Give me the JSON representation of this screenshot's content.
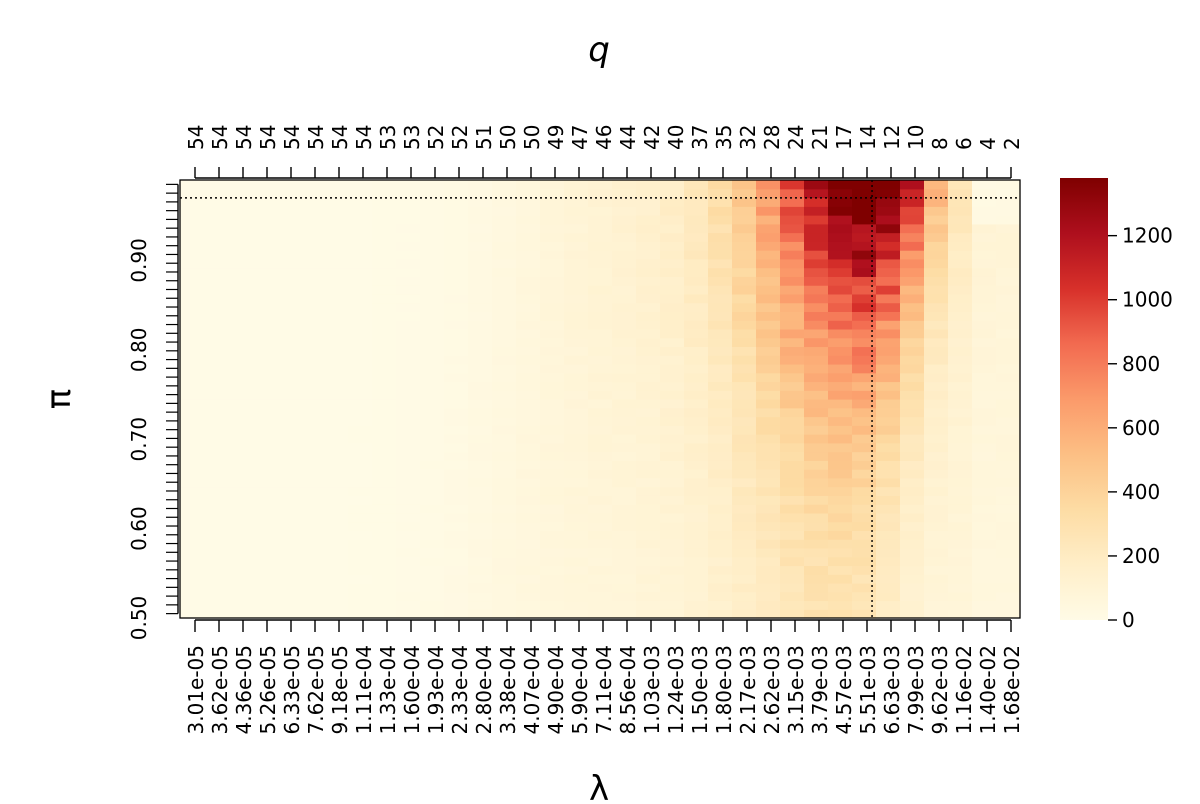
{
  "chart_data": {
    "type": "heatmap",
    "title": "",
    "xlabel": "λ",
    "ylabel": "π",
    "x2label": "q",
    "x_scale": "log",
    "xlim": [
      3.01e-05,
      0.0185
    ],
    "ylim": [
      0.5,
      0.99
    ],
    "x_tick_labels": [
      "3.01e-05",
      "3.62e-05",
      "4.36e-05",
      "5.26e-05",
      "6.33e-05",
      "7.62e-05",
      "9.18e-05",
      "1.11e-04",
      "1.33e-04",
      "1.60e-04",
      "1.93e-04",
      "2.33e-04",
      "2.80e-04",
      "3.38e-04",
      "4.07e-04",
      "4.90e-04",
      "5.90e-04",
      "7.11e-04",
      "8.56e-04",
      "1.03e-03",
      "1.24e-03",
      "1.50e-03",
      "1.80e-03",
      "2.17e-03",
      "2.62e-03",
      "3.15e-03",
      "3.79e-03",
      "4.57e-03",
      "5.51e-03",
      "6.63e-03",
      "7.99e-03",
      "9.62e-03",
      "1.16e-02",
      "1.40e-02",
      "1.68e-02"
    ],
    "q_tick_labels": [
      "54",
      "54",
      "54",
      "54",
      "54",
      "54",
      "54",
      "54",
      "53",
      "53",
      "52",
      "52",
      "51",
      "50",
      "50",
      "49",
      "47",
      "46",
      "44",
      "42",
      "40",
      "37",
      "35",
      "32",
      "28",
      "24",
      "21",
      "17",
      "14",
      "12",
      "10",
      "8",
      "6",
      "4",
      "2"
    ],
    "y_tick_labels": [
      "0.50",
      "0.60",
      "0.70",
      "0.80",
      "0.90"
    ],
    "y_tick_values": [
      0.5,
      0.6,
      0.7,
      0.8,
      0.9
    ],
    "colorbar": {
      "min": 0,
      "max": 1380,
      "ticks": [
        0,
        200,
        400,
        600,
        800,
        1000,
        1200
      ],
      "colors": [
        "#fffbe6",
        "#ffeec8",
        "#fddca4",
        "#fcbf84",
        "#fb9a6a",
        "#f26a50",
        "#d7302a",
        "#ae0f1d",
        "#7f0000"
      ]
    },
    "optimum": {
      "lambda": 0.00597,
      "pi": 0.97
    },
    "surface_description": "Per-cell value over 35 λ-columns × 50 π-rows: near zero at small λ, rising to a maximum of about 1380 near λ≈6e-03, π≈0.97; cells at λ≥1.40e-02 and π≥0.94 are near zero"
  }
}
